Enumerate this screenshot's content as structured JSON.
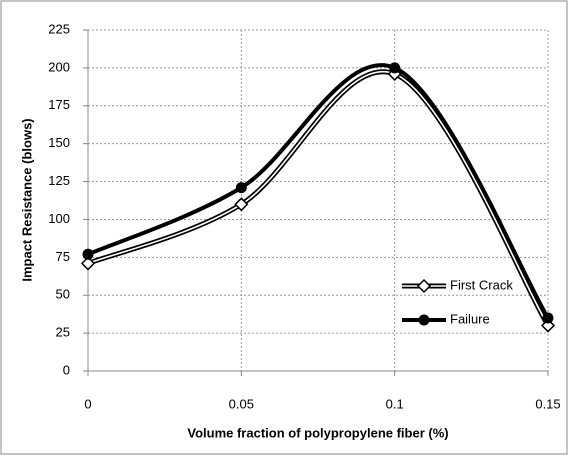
{
  "chart_data": {
    "type": "line",
    "xlabel": "Volume fraction of polypropylene fiber (%)",
    "ylabel": "Impact Resistance (blows)",
    "x": [
      0,
      0.05,
      0.1,
      0.15
    ],
    "series": [
      {
        "name": "First Crack",
        "color": "#000000",
        "marker": "diamond",
        "values": [
          71,
          110,
          196,
          30
        ]
      },
      {
        "name": "Failure",
        "color": "#000000",
        "marker": "circle",
        "values": [
          77,
          121,
          200,
          35
        ]
      }
    ],
    "xlim": [
      0,
      0.15
    ],
    "xticks": [
      0,
      0.05,
      0.1,
      0.15
    ],
    "ylim": [
      0,
      225
    ],
    "yticks": [
      0,
      25,
      50,
      75,
      100,
      125,
      150,
      175,
      200,
      225
    ],
    "grid": true,
    "smooth": true,
    "legend": "lower right"
  }
}
